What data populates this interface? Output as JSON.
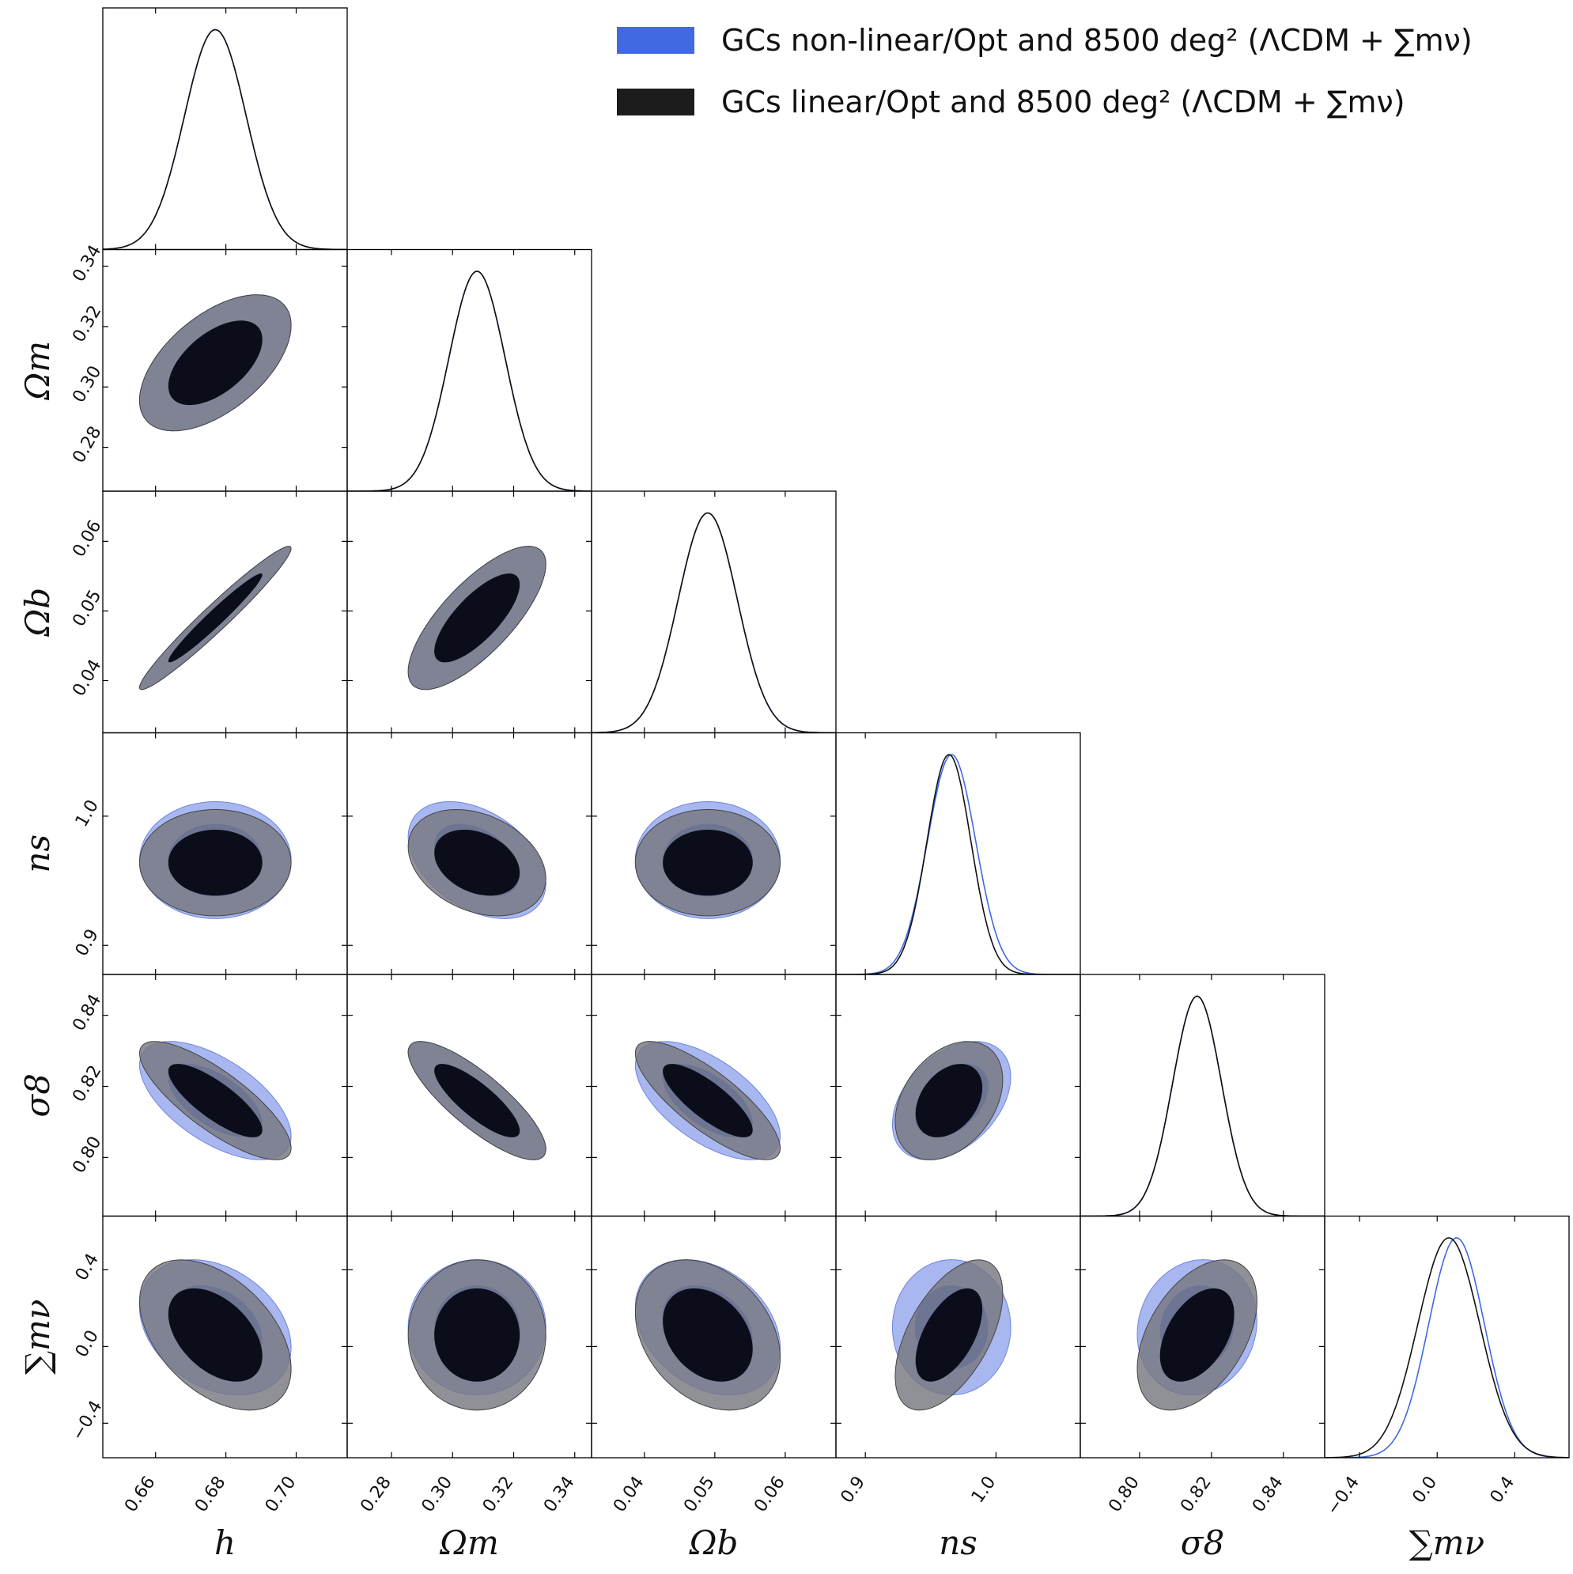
{
  "chart_data": {
    "type": "corner",
    "parameters": [
      {
        "key": "h",
        "label": "h",
        "ticks": [
          "0.66",
          "0.68",
          "0.70"
        ],
        "tick_values": [
          0.66,
          0.68,
          0.7
        ],
        "range": [
          0.645,
          0.7145
        ],
        "mean": 0.677,
        "sigma": 0.0088
      },
      {
        "key": "om",
        "label": "Ωm",
        "ticks": [
          "0.28",
          "0.30",
          "0.32",
          "0.34"
        ],
        "tick_values": [
          0.28,
          0.3,
          0.32,
          0.34
        ],
        "range": [
          0.2655,
          0.3455
        ],
        "mean": 0.308,
        "sigma": 0.0092
      },
      {
        "key": "ob",
        "label": "Ωb",
        "ticks": [
          "0.04",
          "0.05",
          "0.06"
        ],
        "tick_values": [
          0.04,
          0.05,
          0.06
        ],
        "range": [
          0.0325,
          0.0672
        ],
        "mean": 0.049,
        "sigma": 0.0042
      },
      {
        "key": "ns",
        "label": "ns",
        "ticks": [
          "0.9",
          "1.0"
        ],
        "tick_values": [
          0.9,
          1.0
        ],
        "range": [
          0.8775,
          1.0645
        ],
        "mean": 0.964,
        "sigma": 0.0168
      },
      {
        "key": "s8",
        "label": "σ8",
        "ticks": [
          "0.80",
          "0.82",
          "0.84"
        ],
        "tick_values": [
          0.8,
          0.82,
          0.84
        ],
        "range": [
          0.7835,
          0.8515
        ],
        "mean": 0.816,
        "sigma": 0.0068
      },
      {
        "key": "mnu",
        "label": "∑mν",
        "ticks": [
          "−0.4",
          "0.0",
          "0.4"
        ],
        "tick_values": [
          -0.4,
          0.0,
          0.4
        ],
        "range": [
          -0.58,
          0.68
        ],
        "mean": 0.06,
        "sigma": 0.16
      }
    ],
    "series": [
      {
        "name": "GCs non-linear/Opt and 8500 deg² (ΛCDM + ∑mν)",
        "color": "#4169e1",
        "sigma_scale": [
          1.0,
          1.0,
          1.0,
          1.1,
          1.0,
          0.9
        ],
        "mean_shift": [
          0,
          0,
          0,
          0.002,
          0,
          0.04
        ]
      },
      {
        "name": "GCs linear/Opt and 8500 deg² (ΛCDM + ∑mν)",
        "color": "#1c1c1c",
        "sigma_scale": [
          1.0,
          1.0,
          1.0,
          1.0,
          1.0,
          1.0
        ],
        "mean_shift": [
          0,
          0,
          0,
          0,
          0,
          0
        ]
      }
    ],
    "correlations": {
      "om|h": 0.55,
      "ob|h": 0.97,
      "ob|om": 0.75,
      "ns|h": 0.0,
      "ns|om": -0.3,
      "ns|ob": 0.0,
      "s8|h": -0.8,
      "s8|om": -0.82,
      "s8|ob": -0.8,
      "s8|ns": 0.35,
      "mnu|h": -0.45,
      "mnu|om": 0.0,
      "mnu|ob": -0.3,
      "mnu|ns": 0.55,
      "mnu|s8": 0.45
    },
    "correlations_nonlinear": {
      "om|h": 0.55,
      "ob|h": 0.97,
      "ob|om": 0.75,
      "ns|h": 0.0,
      "ns|om": -0.4,
      "ns|ob": 0.0,
      "s8|h": -0.6,
      "s8|om": -0.82,
      "s8|ob": -0.6,
      "s8|ns": 0.4,
      "mnu|h": -0.3,
      "mnu|om": 0.0,
      "mnu|ob": -0.3,
      "mnu|ns": 0.0,
      "mnu|s8": 0.1
    },
    "contour_levels": [
      "68%",
      "95%"
    ],
    "legend_position": "top-right"
  }
}
